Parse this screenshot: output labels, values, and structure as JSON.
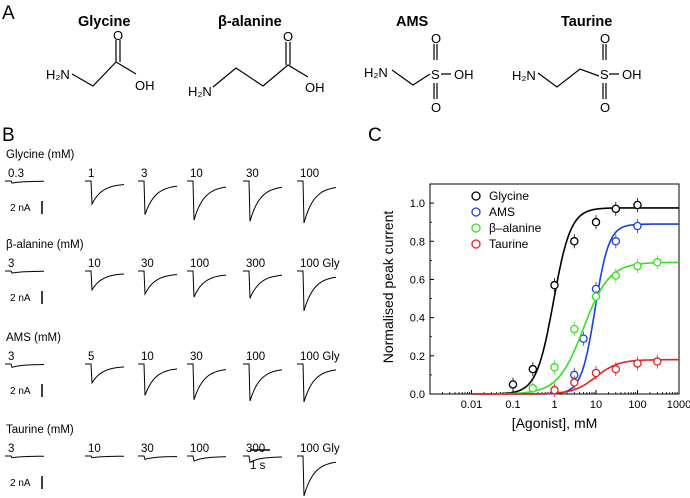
{
  "panel_a": {
    "label": "A",
    "compounds": [
      {
        "name": "Glycine",
        "atoms": {
          "amine": "H₂N",
          "carbonyl": "O",
          "hydroxyl": "OH"
        }
      },
      {
        "name": "β-alanine",
        "atoms": {
          "amine": "H₂N",
          "carbonyl": "O",
          "hydroxyl": "OH"
        }
      },
      {
        "name": "AMS",
        "atoms": {
          "amine": "H₂N",
          "sulfur": "S",
          "oxo1": "O",
          "oxo2": "O",
          "hydroxyl": "OH"
        }
      },
      {
        "name": "Taurine",
        "atoms": {
          "amine": "H₂N",
          "sulfur": "S",
          "oxo1": "O",
          "oxo2": "O",
          "hydroxyl": "OH"
        }
      }
    ]
  },
  "panel_b": {
    "label": "B",
    "groups": [
      {
        "title": "Glycine (mM)",
        "concs": [
          "0.3",
          "1",
          "3",
          "10",
          "30",
          "100"
        ],
        "amps": [
          0.05,
          0.55,
          0.8,
          0.93,
          0.96,
          1.0
        ],
        "scale": "2 nA"
      },
      {
        "title": "β-alanine (mM)",
        "concs": [
          "3",
          "10",
          "30",
          "100",
          "300",
          "100 Gly"
        ],
        "amps": [
          0.05,
          0.45,
          0.55,
          0.62,
          0.65,
          0.95
        ],
        "scale": "2 nA"
      },
      {
        "title": "AMS (mM)",
        "concs": [
          "3",
          "5",
          "10",
          "30",
          "100",
          "100 Gly"
        ],
        "amps": [
          0.08,
          0.45,
          0.75,
          0.85,
          0.88,
          0.9
        ],
        "scale": "2 nA"
      },
      {
        "title": "Taurine (mM)",
        "concs": [
          "3",
          "10",
          "30",
          "100",
          "300",
          "100 Gly"
        ],
        "amps": [
          0.04,
          0.04,
          0.08,
          0.12,
          0.15,
          0.95
        ],
        "scale": "2 nA"
      }
    ],
    "time_scale": "1 s"
  },
  "panel_c": {
    "label": "C"
  },
  "chart_data": {
    "type": "scatter",
    "xlabel": "[Agonist], mM",
    "ylabel": "Normalised peak current",
    "xscale": "log",
    "xlim": [
      0.001,
      1000
    ],
    "ylim": [
      0,
      1.1
    ],
    "x_ticks": [
      "0.01",
      "0.1",
      "1",
      "10",
      "100",
      "1000"
    ],
    "y_ticks": [
      "0.0",
      "0.2",
      "0.4",
      "0.6",
      "0.8",
      "1.0"
    ],
    "legend_position": "top-left",
    "series": [
      {
        "name": "Glycine",
        "color": "#000000",
        "points": [
          [
            0.1,
            0.05
          ],
          [
            0.3,
            0.13
          ],
          [
            1,
            0.57
          ],
          [
            3,
            0.8
          ],
          [
            10,
            0.9
          ],
          [
            30,
            0.97
          ],
          [
            100,
            0.99
          ]
        ],
        "fit": {
          "max": 0.975,
          "ec50": 0.95,
          "n": 2.1
        }
      },
      {
        "name": "AMS",
        "color": "#1c3fe0",
        "points": [
          [
            3,
            0.1
          ],
          [
            5,
            0.29
          ],
          [
            10,
            0.55
          ],
          [
            30,
            0.8
          ],
          [
            100,
            0.88
          ]
        ],
        "fit": {
          "max": 0.89,
          "ec50": 9.5,
          "n": 2.6
        }
      },
      {
        "name": "β–alanine",
        "color": "#35e021",
        "points": [
          [
            0.3,
            0.03
          ],
          [
            1,
            0.14
          ],
          [
            3,
            0.34
          ],
          [
            10,
            0.51
          ],
          [
            30,
            0.62
          ],
          [
            100,
            0.67
          ],
          [
            300,
            0.69
          ]
        ],
        "fit": {
          "max": 0.69,
          "ec50": 5.0,
          "n": 1.4
        }
      },
      {
        "name": "Taurine",
        "color": "#e32222",
        "points": [
          [
            1,
            0.02
          ],
          [
            3,
            0.06
          ],
          [
            10,
            0.11
          ],
          [
            30,
            0.13
          ],
          [
            100,
            0.16
          ],
          [
            300,
            0.17
          ]
        ],
        "fit": {
          "max": 0.18,
          "ec50": 10.0,
          "n": 1.6
        }
      }
    ]
  }
}
